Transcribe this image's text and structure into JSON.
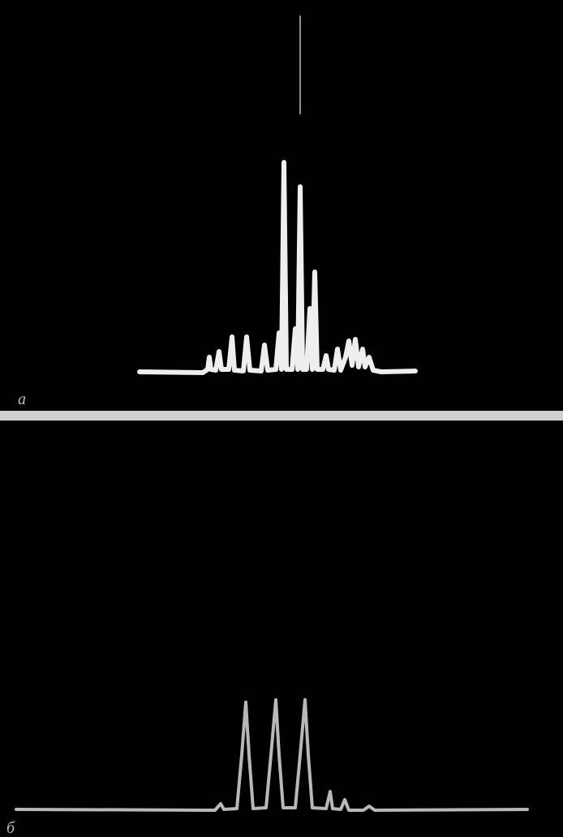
{
  "panels": [
    {
      "label": "a"
    },
    {
      "label": "б"
    }
  ]
}
